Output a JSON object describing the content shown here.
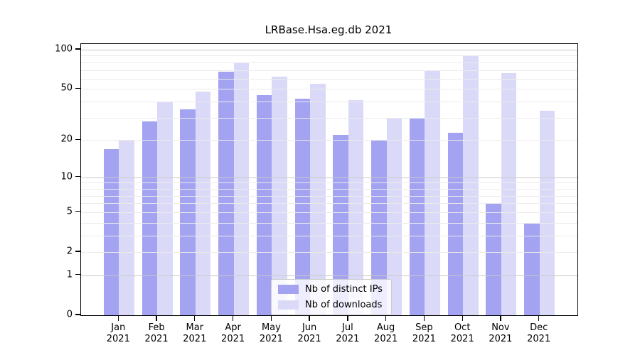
{
  "title": "LRBase.Hsa.eg.db 2021",
  "colors": {
    "distinct_ips": "#a3a3f2",
    "downloads": "#dadaf8",
    "grid_major": "#c9c9c9",
    "grid_minor": "#ebebeb",
    "axis": "#000000",
    "background": "#ffffff"
  },
  "legend": {
    "items": [
      {
        "label": "Nb of distinct IPs",
        "color_key": "distinct_ips"
      },
      {
        "label": "Nb of downloads",
        "color_key": "downloads"
      }
    ]
  },
  "y_axis": {
    "tick_labels": [
      "100",
      "50",
      "20",
      "10",
      "5",
      "2",
      "1",
      "0"
    ],
    "tick_values": [
      100,
      50,
      20,
      10,
      5,
      2,
      1,
      0
    ],
    "scale": "log1p"
  },
  "x_axis": {
    "month_labels": [
      "Jan",
      "Feb",
      "Mar",
      "Apr",
      "May",
      "Jun",
      "Jul",
      "Aug",
      "Sep",
      "Oct",
      "Nov",
      "Dec"
    ],
    "year_label": "2021"
  },
  "chart_data": {
    "type": "bar",
    "title": "LRBase.Hsa.eg.db 2021",
    "categories": [
      "Jan 2021",
      "Feb 2021",
      "Mar 2021",
      "Apr 2021",
      "May 2021",
      "Jun 2021",
      "Jul 2021",
      "Aug 2021",
      "Sep 2021",
      "Oct 2021",
      "Nov 2021",
      "Dec 2021"
    ],
    "series": [
      {
        "name": "Nb of distinct IPs",
        "values": [
          17,
          28,
          35,
          68,
          45,
          42,
          22,
          20,
          30,
          23,
          6,
          4
        ]
      },
      {
        "name": "Nb of downloads",
        "values": [
          20,
          40,
          48,
          80,
          62,
          55,
          41,
          30,
          70,
          90,
          66,
          34
        ]
      }
    ],
    "yscale": "log1p",
    "yticks": [
      0,
      1,
      2,
      5,
      10,
      20,
      50,
      100
    ],
    "grid_major_at": [
      1,
      10,
      100
    ],
    "grid_minor_at": [
      2,
      3,
      4,
      5,
      6,
      7,
      8,
      9,
      20,
      30,
      40,
      50,
      60,
      70,
      80,
      90
    ],
    "ylim": [
      0,
      111
    ],
    "grid": "both",
    "legend_position": "inside-lower-center"
  }
}
